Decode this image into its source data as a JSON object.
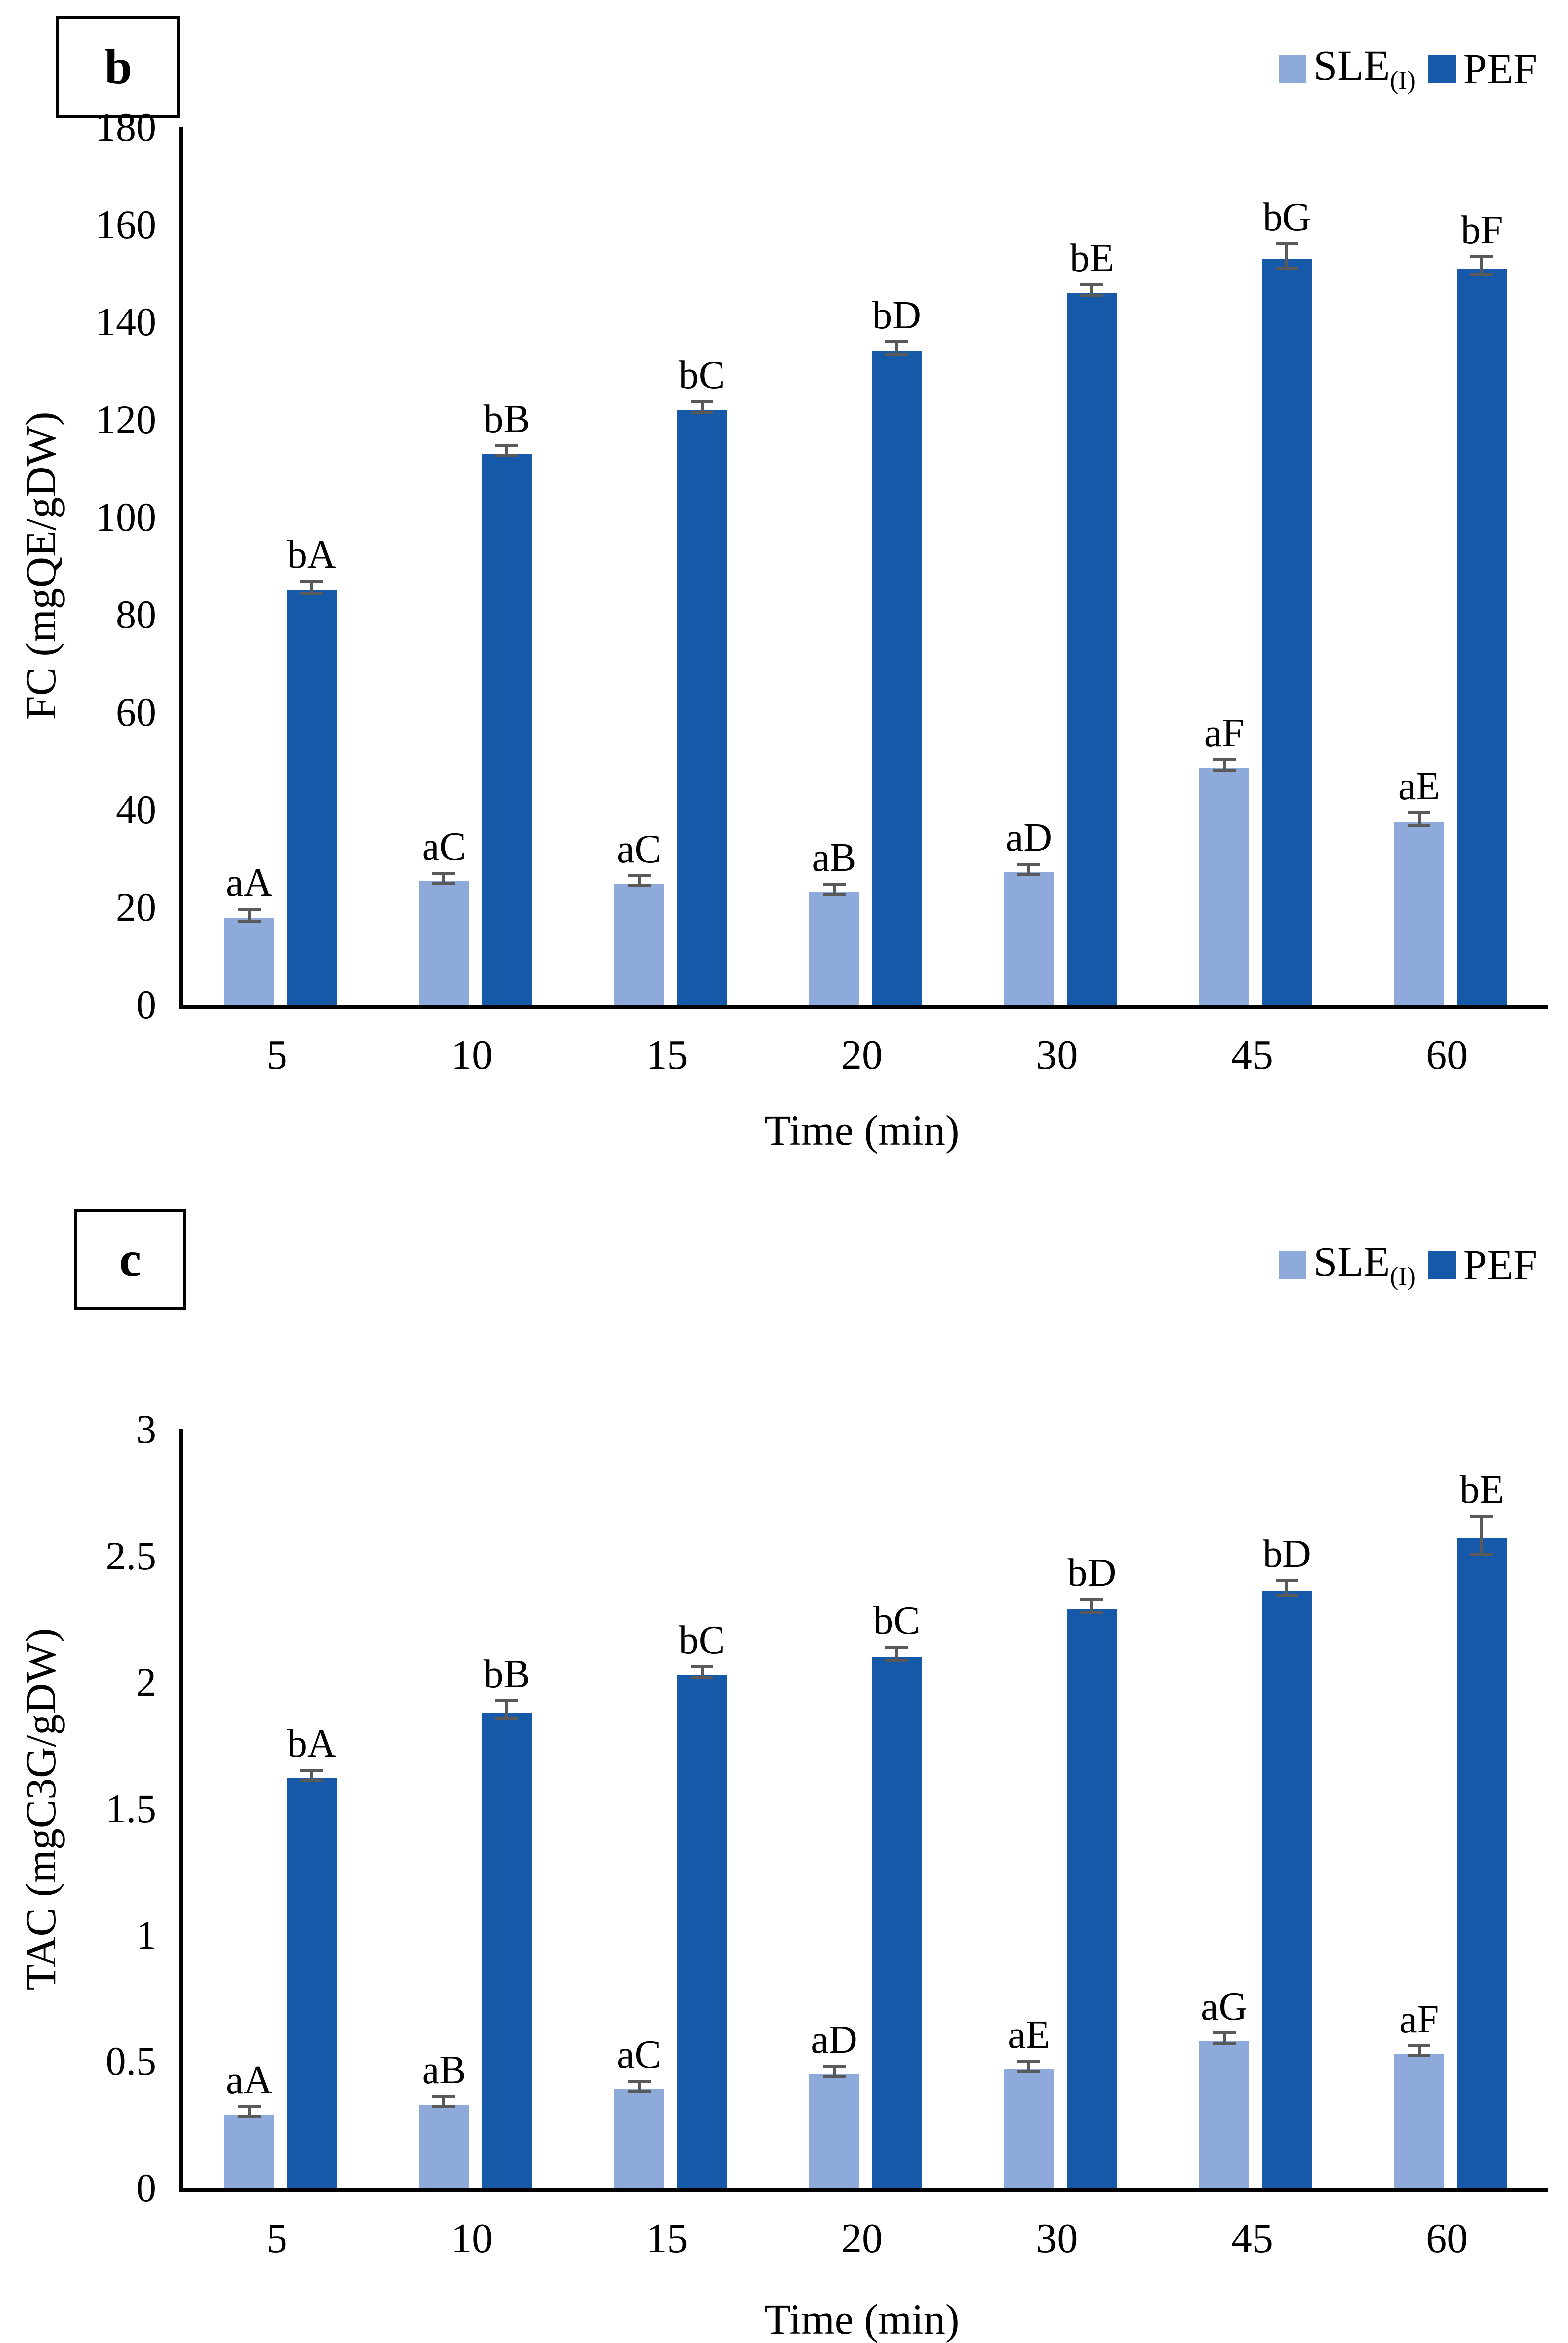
{
  "chart_data": [
    {
      "type": "bar",
      "panel_label": "b",
      "title": "",
      "ylabel": "FC (mgQE/gDW)",
      "xlabel": "Time (min)",
      "ylim": [
        0,
        180
      ],
      "ytick_step": 20,
      "grid": false,
      "legend_position": "top-right",
      "error_bar_color": "#595959",
      "axis_color": "#000000",
      "categories": [
        "5",
        "10",
        "15",
        "20",
        "30",
        "45",
        "60"
      ],
      "series": [
        {
          "name": "SLE",
          "name_sub": "(I)",
          "color": "#8EAADB",
          "values": [
            17.8,
            25.4,
            24.8,
            23.1,
            27.2,
            48.6,
            37.4
          ],
          "errors": [
            0.9,
            0.5,
            0.6,
            0.5,
            0.6,
            0.8,
            1.0
          ],
          "point_labels": [
            "aA",
            "aC",
            "aC",
            "aB",
            "aD",
            "aF",
            "aE"
          ]
        },
        {
          "name": "PEF",
          "name_sub": "",
          "color": "#1659A8",
          "values": [
            85,
            113,
            122,
            134,
            146,
            153,
            151
          ],
          "errors": [
            1.0,
            0.6,
            0.8,
            1.0,
            0.8,
            2.2,
            1.5
          ],
          "point_labels": [
            "bA",
            "bB",
            "bC",
            "bD",
            "bE",
            "bG",
            "bF"
          ]
        }
      ]
    },
    {
      "type": "bar",
      "panel_label": "c",
      "title": "",
      "ylabel": "TAC (mgC3G/gDW)",
      "xlabel": "Time (min)",
      "ylim": [
        0,
        3
      ],
      "ytick_step": 0.5,
      "grid": false,
      "legend_position": "top-right",
      "error_bar_color": "#595959",
      "axis_color": "#000000",
      "categories": [
        "5",
        "10",
        "15",
        "20",
        "30",
        "45",
        "60"
      ],
      "series": [
        {
          "name": "SLE",
          "name_sub": "(I)",
          "color": "#8EAADB",
          "values": [
            0.29,
            0.33,
            0.39,
            0.45,
            0.47,
            0.58,
            0.53
          ],
          "errors": [
            0.008,
            0.008,
            0.008,
            0.01,
            0.008,
            0.015,
            0.008
          ],
          "point_labels": [
            "aA",
            "aB",
            "aC",
            "aD",
            "aE",
            "aG",
            "aF"
          ]
        },
        {
          "name": "PEF",
          "name_sub": "",
          "color": "#1659A8",
          "values": [
            1.62,
            1.88,
            2.03,
            2.1,
            2.29,
            2.36,
            2.57
          ],
          "errors": [
            0.012,
            0.03,
            0.015,
            0.02,
            0.02,
            0.025,
            0.07
          ],
          "point_labels": [
            "bA",
            "bB",
            "bC",
            "bC",
            "bD",
            "bD",
            "bE"
          ]
        }
      ]
    }
  ]
}
